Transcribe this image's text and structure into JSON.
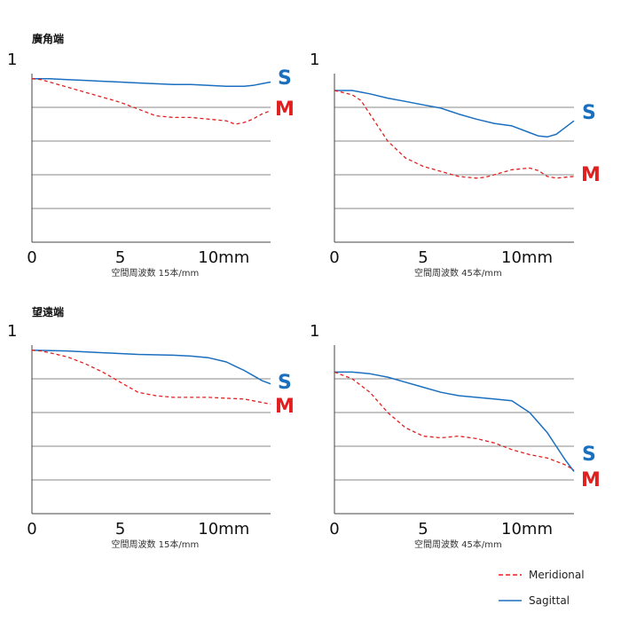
{
  "colors": {
    "meridional": "#e02020",
    "sagittal": "#1a6fbf",
    "grid": "#8a8a8a",
    "axis": "#444444"
  },
  "legend": {
    "meridional": "Meridional",
    "sagittal": "Sagittal"
  },
  "sections": {
    "wide": "廣角端",
    "tele": "望遠端"
  },
  "chart_data": [
    {
      "type": "line",
      "id": "wide-15",
      "section_label": "廣角端",
      "ytop_label": "1",
      "xlabel": "空間周波数 15本/mm",
      "xticks": [
        "0",
        "5",
        "10mm"
      ],
      "xlim": [
        0,
        13.5
      ],
      "ylim": [
        0,
        1
      ],
      "grid": true,
      "series": [
        {
          "name": "S",
          "x": [
            0,
            1,
            2,
            3,
            4,
            5,
            6,
            7,
            8,
            9,
            10,
            11,
            11.5,
            12,
            12.5,
            13,
            13.5
          ],
          "y": [
            0.97,
            0.97,
            0.965,
            0.96,
            0.955,
            0.95,
            0.945,
            0.94,
            0.935,
            0.935,
            0.93,
            0.925,
            0.925,
            0.925,
            0.93,
            0.94,
            0.95
          ]
        },
        {
          "name": "M",
          "x": [
            0,
            0.5,
            1,
            2,
            3,
            4,
            5,
            6,
            7,
            8,
            9,
            10,
            11,
            11.5,
            12,
            12.5,
            13,
            13.5
          ],
          "y": [
            0.97,
            0.965,
            0.95,
            0.92,
            0.89,
            0.86,
            0.83,
            0.79,
            0.75,
            0.74,
            0.74,
            0.73,
            0.72,
            0.7,
            0.71,
            0.73,
            0.76,
            0.78
          ]
        }
      ]
    },
    {
      "type": "line",
      "id": "wide-45",
      "section_label": "",
      "ytop_label": "1",
      "xlabel": "空間周波数 45本/mm",
      "xticks": [
        "0",
        "5",
        "10mm"
      ],
      "xlim": [
        0,
        13.5
      ],
      "ylim": [
        0,
        1
      ],
      "grid": true,
      "series": [
        {
          "name": "S",
          "x": [
            0,
            1,
            1.5,
            2,
            3,
            4,
            5,
            6,
            7,
            8,
            9,
            10,
            11,
            11.5,
            12,
            12.5,
            13,
            13.5
          ],
          "y": [
            0.9,
            0.9,
            0.89,
            0.88,
            0.855,
            0.835,
            0.815,
            0.795,
            0.76,
            0.73,
            0.705,
            0.69,
            0.65,
            0.63,
            0.625,
            0.64,
            0.68,
            0.72
          ]
        },
        {
          "name": "M",
          "x": [
            0,
            1,
            1.5,
            2,
            3,
            4,
            5,
            6,
            7,
            8,
            8.5,
            9,
            10,
            11,
            11.5,
            12,
            12.5,
            13,
            13.5
          ],
          "y": [
            0.9,
            0.875,
            0.84,
            0.76,
            0.6,
            0.5,
            0.45,
            0.42,
            0.39,
            0.38,
            0.385,
            0.4,
            0.43,
            0.44,
            0.425,
            0.39,
            0.38,
            0.385,
            0.39
          ]
        }
      ]
    },
    {
      "type": "line",
      "id": "tele-15",
      "section_label": "望遠端",
      "ytop_label": "1",
      "xlabel": "空間周波数 15本/mm",
      "xticks": [
        "0",
        "5",
        "10mm"
      ],
      "xlim": [
        0,
        13.5
      ],
      "ylim": [
        0,
        1
      ],
      "grid": true,
      "series": [
        {
          "name": "S",
          "x": [
            0,
            2,
            4,
            6,
            8,
            9,
            10,
            11,
            11.5,
            12,
            12.5,
            13,
            13.5
          ],
          "y": [
            0.97,
            0.965,
            0.955,
            0.945,
            0.94,
            0.935,
            0.925,
            0.9,
            0.875,
            0.85,
            0.82,
            0.79,
            0.77
          ]
        },
        {
          "name": "M",
          "x": [
            0,
            0.5,
            1,
            2,
            3,
            4,
            5,
            6,
            7,
            8,
            9,
            10,
            11,
            12,
            12.5,
            13,
            13.5
          ],
          "y": [
            0.97,
            0.965,
            0.955,
            0.93,
            0.89,
            0.84,
            0.78,
            0.72,
            0.7,
            0.69,
            0.69,
            0.69,
            0.685,
            0.68,
            0.67,
            0.66,
            0.65
          ]
        }
      ]
    },
    {
      "type": "line",
      "id": "tele-45",
      "section_label": "",
      "ytop_label": "1",
      "xlabel": "空間周波数 45本/mm",
      "xticks": [
        "0",
        "5",
        "10mm"
      ],
      "xlim": [
        0,
        13.5
      ],
      "ylim": [
        0,
        1
      ],
      "grid": true,
      "series": [
        {
          "name": "S",
          "x": [
            0,
            1,
            2,
            3,
            4,
            5,
            6,
            7,
            8,
            9,
            10,
            11,
            12,
            12.5,
            13,
            13.5
          ],
          "y": [
            0.84,
            0.84,
            0.83,
            0.81,
            0.78,
            0.75,
            0.72,
            0.7,
            0.69,
            0.68,
            0.67,
            0.6,
            0.48,
            0.4,
            0.32,
            0.25
          ]
        },
        {
          "name": "M",
          "x": [
            0,
            1,
            2,
            3,
            4,
            5,
            6,
            7,
            8,
            9,
            10,
            11,
            12,
            13,
            13.5
          ],
          "y": [
            0.84,
            0.8,
            0.72,
            0.6,
            0.51,
            0.46,
            0.45,
            0.46,
            0.445,
            0.42,
            0.38,
            0.35,
            0.33,
            0.29,
            0.26
          ]
        }
      ]
    }
  ]
}
